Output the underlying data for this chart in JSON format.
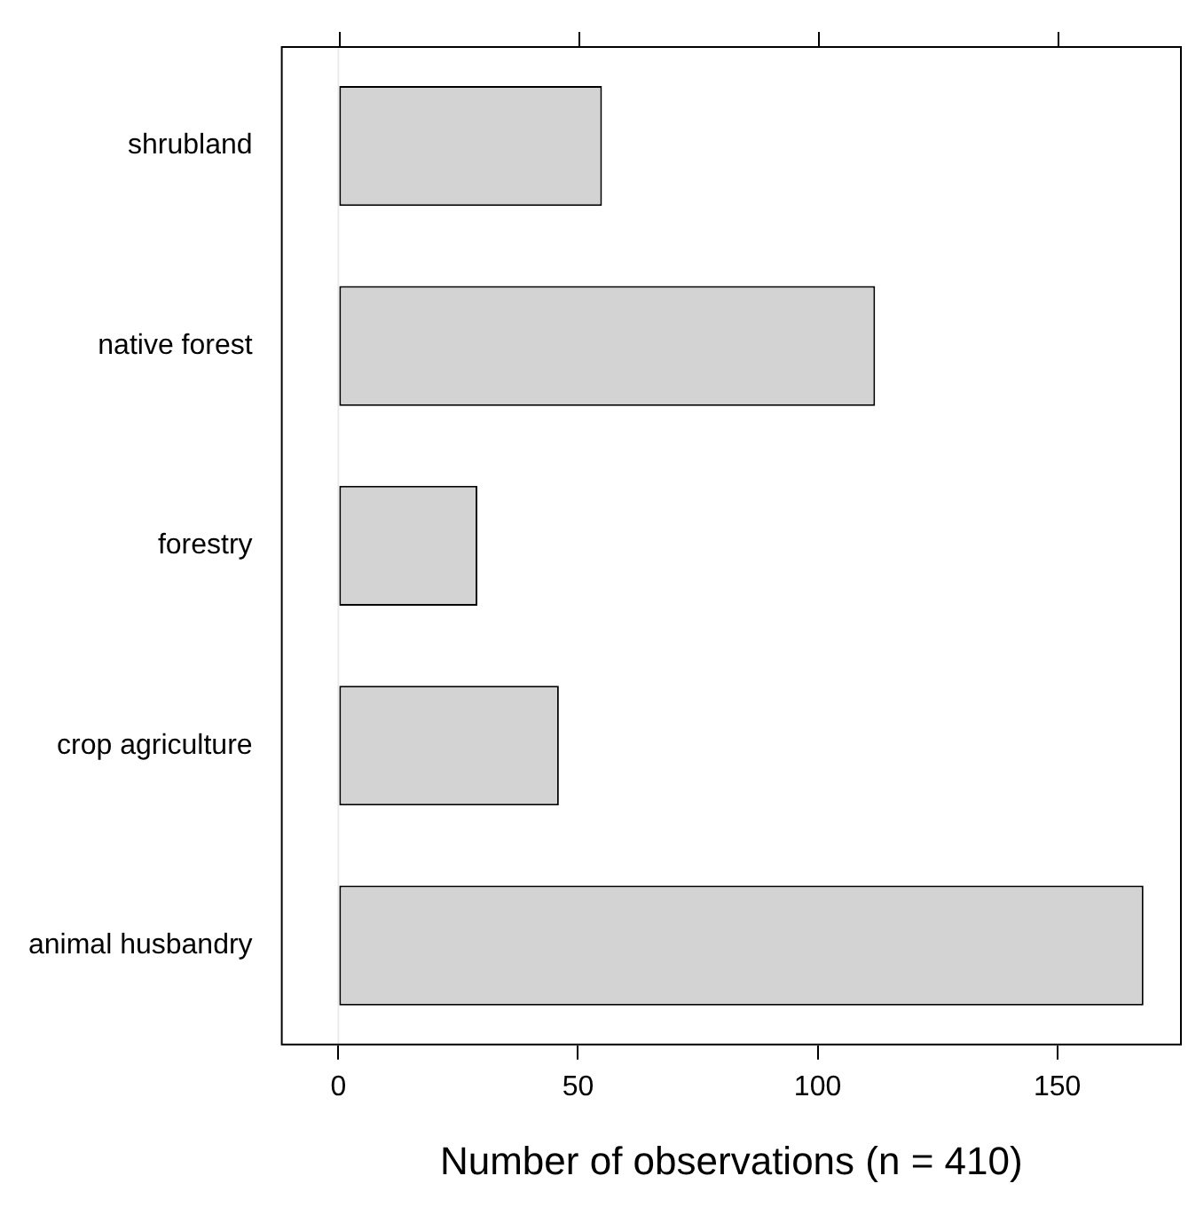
{
  "chart_data": {
    "type": "bar",
    "orientation": "horizontal",
    "categories": [
      "shrubland",
      "native forest",
      "forestry",
      "crop agriculture",
      "animal husbandry"
    ],
    "values": [
      55,
      112,
      29,
      46,
      168
    ],
    "color": "#d3d3d3",
    "xlim": [
      -12,
      176
    ],
    "xticks": [
      0,
      50,
      100,
      150
    ],
    "xlabel": "Number of observations (n = 410)",
    "grid": false,
    "legend": false,
    "ref_lines": [
      {
        "axis": "x",
        "value": 0,
        "color": "#ebebeb"
      }
    ]
  }
}
